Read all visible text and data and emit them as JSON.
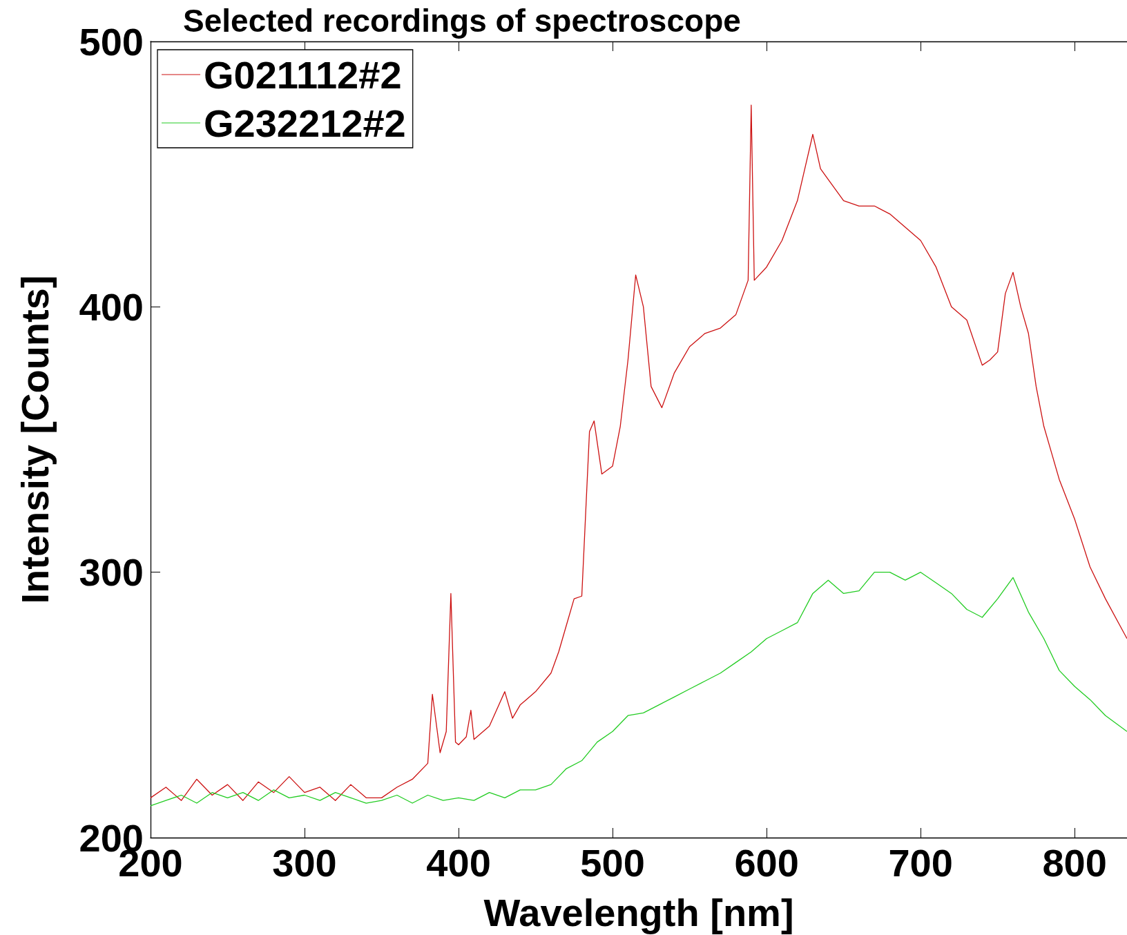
{
  "chart_data": {
    "type": "line",
    "title": "Selected recordings of spectroscope",
    "xlabel": "Wavelength [nm]",
    "ylabel": "Intensity [Counts]",
    "xlim": [
      200,
      834
    ],
    "xticks": [
      200,
      300,
      400,
      500,
      600,
      700,
      800
    ],
    "ylim": [
      200,
      500
    ],
    "yticks": [
      200,
      300,
      400,
      500
    ],
    "grid": false,
    "legend": "top left",
    "marker": "none",
    "line_style": "solid",
    "series": [
      {
        "name": "G021112#2",
        "color": "#cc1111",
        "x": [
          200,
          210,
          220,
          230,
          240,
          250,
          260,
          270,
          280,
          290,
          300,
          310,
          320,
          330,
          340,
          350,
          360,
          370,
          380,
          383,
          388,
          392,
          395,
          398,
          400,
          405,
          408,
          410,
          420,
          430,
          435,
          440,
          450,
          460,
          465,
          470,
          475,
          480,
          485,
          488,
          493,
          500,
          505,
          510,
          515,
          520,
          525,
          532,
          540,
          550,
          560,
          570,
          580,
          588,
          590,
          592,
          600,
          610,
          620,
          630,
          635,
          640,
          650,
          660,
          670,
          680,
          690,
          700,
          710,
          720,
          730,
          740,
          745,
          750,
          755,
          760,
          765,
          770,
          775,
          780,
          790,
          800,
          810,
          820,
          834
        ],
        "values": [
          215,
          219,
          214,
          222,
          216,
          220,
          214,
          221,
          217,
          223,
          217,
          219,
          214,
          220,
          215,
          215,
          219,
          222,
          228,
          254,
          232,
          240,
          292,
          236,
          235,
          238,
          248,
          237,
          242,
          255,
          245,
          250,
          255,
          262,
          270,
          280,
          290,
          291,
          353,
          357,
          337,
          340,
          355,
          380,
          412,
          400,
          370,
          362,
          375,
          385,
          390,
          392,
          397,
          410,
          476,
          410,
          415,
          425,
          440,
          465,
          452,
          448,
          440,
          438,
          438,
          435,
          430,
          425,
          415,
          400,
          395,
          378,
          380,
          383,
          405,
          413,
          400,
          390,
          370,
          355,
          335,
          320,
          302,
          290,
          275
        ]
      },
      {
        "name": "G232212#2",
        "color": "#22cc22",
        "x": [
          200,
          210,
          220,
          230,
          240,
          250,
          260,
          270,
          280,
          290,
          300,
          310,
          320,
          330,
          340,
          350,
          360,
          370,
          380,
          390,
          400,
          410,
          420,
          430,
          440,
          450,
          460,
          465,
          470,
          480,
          490,
          500,
          510,
          520,
          530,
          540,
          550,
          560,
          570,
          580,
          590,
          600,
          610,
          620,
          630,
          640,
          650,
          660,
          670,
          680,
          690,
          700,
          710,
          720,
          730,
          740,
          750,
          760,
          770,
          780,
          790,
          800,
          810,
          820,
          834
        ],
        "values": [
          212,
          214,
          216,
          213,
          217,
          215,
          217,
          214,
          218,
          215,
          216,
          214,
          217,
          215,
          213,
          214,
          216,
          213,
          216,
          214,
          215,
          214,
          217,
          215,
          218,
          218,
          220,
          223,
          226,
          229,
          236,
          240,
          246,
          247,
          250,
          253,
          256,
          259,
          262,
          266,
          270,
          275,
          278,
          281,
          292,
          297,
          292,
          293,
          300,
          300,
          297,
          300,
          296,
          292,
          286,
          283,
          290,
          298,
          285,
          275,
          263,
          257,
          252,
          246,
          240
        ]
      }
    ]
  }
}
